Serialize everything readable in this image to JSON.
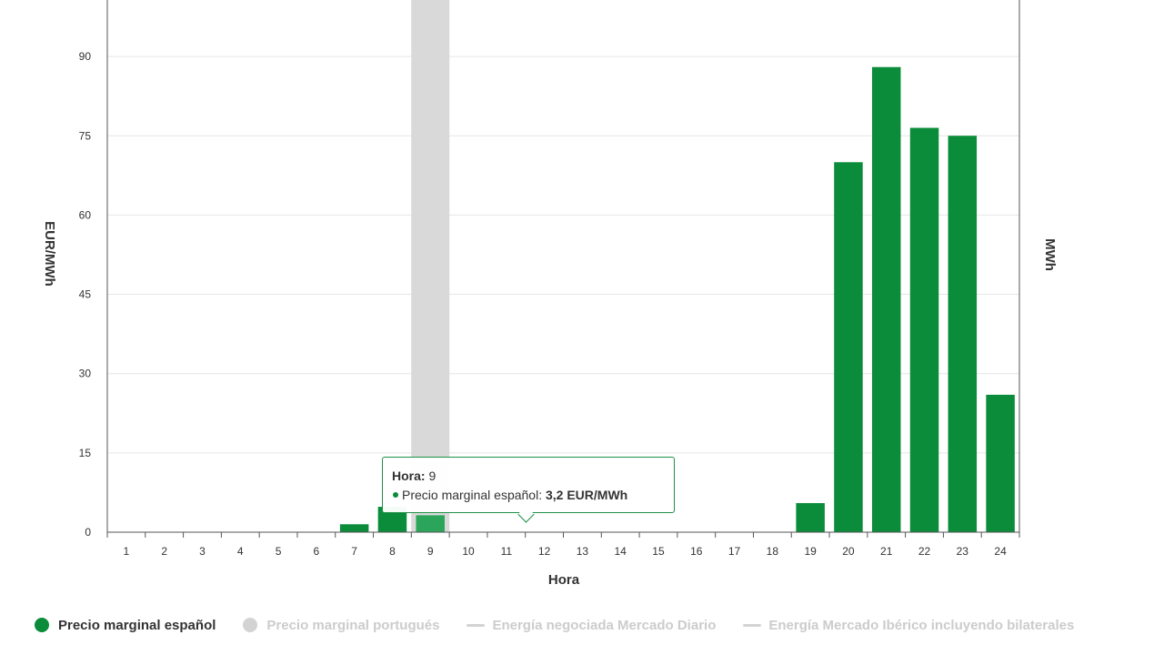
{
  "chart_data": {
    "type": "bar",
    "xlabel": "Hora",
    "ylabel": "EUR/MWh",
    "ylabel_right": "MWh",
    "ylim": [
      0,
      100
    ],
    "yticks": [
      "0",
      "15",
      "30",
      "45",
      "60",
      "75",
      "90"
    ],
    "categories": [
      "1",
      "2",
      "3",
      "4",
      "5",
      "6",
      "7",
      "8",
      "9",
      "10",
      "11",
      "12",
      "13",
      "14",
      "15",
      "16",
      "17",
      "18",
      "19",
      "20",
      "21",
      "22",
      "23",
      "24"
    ],
    "series": [
      {
        "name": "Precio marginal español",
        "color": "#0a8c3a",
        "values": [
          0,
          0,
          0,
          0,
          0,
          0,
          1.5,
          4.8,
          3.2,
          0,
          0,
          0,
          0,
          0,
          0,
          0,
          0,
          0,
          5.5,
          70,
          88,
          76.5,
          75,
          26
        ]
      }
    ],
    "highlight": {
      "category": "9",
      "color": "#d9d9d9"
    },
    "grid": true,
    "legend_position": "bottom"
  },
  "tooltip": {
    "hora_label": "Hora:",
    "hora_value": "9",
    "series_label": "Precio marginal español:",
    "series_value": "3,2 EUR/MWh"
  },
  "legend": {
    "items": [
      {
        "label": "Precio marginal español",
        "symbol": "dot",
        "color": "#0a8c3a",
        "active": true
      },
      {
        "label": "Precio marginal portugués",
        "symbol": "dot",
        "color": "#d3d3d3",
        "active": false
      },
      {
        "label": "Energía negociada Mercado Diario",
        "symbol": "line",
        "color": "#d3d3d3",
        "active": false
      },
      {
        "label": "Energía Mercado Ibérico incluyendo bilaterales",
        "symbol": "line",
        "color": "#d3d3d3",
        "active": false
      }
    ]
  }
}
